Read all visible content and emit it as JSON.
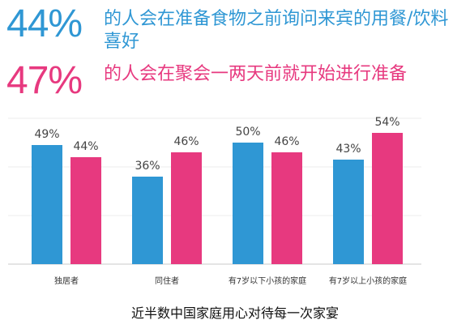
{
  "header": {
    "stat1": {
      "percent": "44%",
      "text": "的人会在准备食物之前询问来宾的用餐/饮料喜好"
    },
    "stat2": {
      "percent": "47%",
      "text": "的人会在聚会一两天前就开始进行准备"
    }
  },
  "colors": {
    "blue": "#2f97d4",
    "pink": "#e7397f"
  },
  "chart_data": {
    "type": "bar",
    "categories": [
      "独居者",
      "同住者",
      "有7岁以下小孩的家庭",
      "有7岁以上小孩的家庭"
    ],
    "series": [
      {
        "values": [
          49,
          36,
          50,
          43
        ],
        "labels": [
          "49%",
          "36%",
          "50%",
          "43%"
        ],
        "color": "#2f97d4"
      },
      {
        "values": [
          44,
          46,
          46,
          54
        ],
        "labels": [
          "44%",
          "46%",
          "46%",
          "54%"
        ],
        "color": "#e7397f"
      }
    ],
    "ylim": [
      0,
      60
    ]
  },
  "caption": "近半数中国家庭用心对待每一次家宴"
}
